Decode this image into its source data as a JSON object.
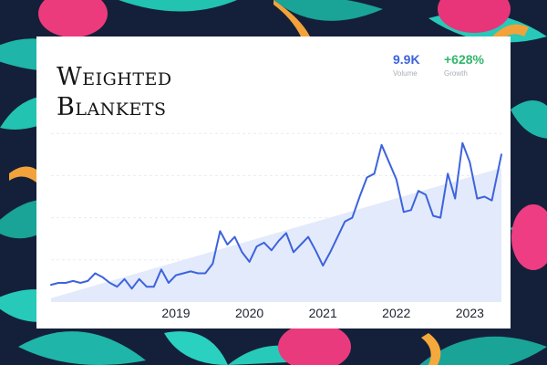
{
  "title": "Weighted Blankets",
  "stats": {
    "volume": {
      "value": "9.9K",
      "label": "Volume"
    },
    "growth": {
      "value": "+628%",
      "label": "Growth"
    }
  },
  "colors": {
    "line": "#3d63dd",
    "area": "#e3eafb",
    "volume": "#3d63dd",
    "growth": "#33b66b",
    "grid": "#e8ebf2"
  },
  "chart_data": {
    "type": "line",
    "title": "Weighted Blankets",
    "xlabel": "",
    "ylabel": "",
    "x_tick_labels": [
      "2019",
      "2020",
      "2021",
      "2022",
      "2023"
    ],
    "x_tick_values": [
      2019,
      2020,
      2021,
      2022,
      2023
    ],
    "xlim": [
      2017.3,
      2023.43
    ],
    "ylim": [
      0,
      110
    ],
    "grid": true,
    "legend": "none",
    "series": [
      {
        "name": "",
        "x": [
          2017.3,
          2017.4,
          2017.5,
          2017.6,
          2017.7,
          2017.8,
          2017.9,
          2018.0,
          2018.1,
          2018.2,
          2018.3,
          2018.4,
          2018.5,
          2018.6,
          2018.7,
          2018.8,
          2018.9,
          2019.0,
          2019.1,
          2019.2,
          2019.3,
          2019.4,
          2019.5,
          2019.6,
          2019.7,
          2019.8,
          2019.9,
          2020.0,
          2020.1,
          2020.2,
          2020.3,
          2020.4,
          2020.5,
          2020.6,
          2020.7,
          2020.8,
          2020.9,
          2021.0,
          2021.1,
          2021.2,
          2021.3,
          2021.4,
          2021.5,
          2021.6,
          2021.7,
          2021.8,
          2021.9,
          2022.0,
          2022.1,
          2022.2,
          2022.3,
          2022.4,
          2022.5,
          2022.6,
          2022.7,
          2022.8,
          2022.9,
          2023.0,
          2023.1,
          2023.2,
          2023.3,
          2023.43
        ],
        "values": [
          9,
          10,
          10,
          11,
          10,
          11,
          15,
          13,
          10,
          8,
          12,
          7,
          12,
          8,
          8,
          17,
          10,
          14,
          15,
          16,
          15,
          15,
          20,
          37,
          30,
          34,
          26,
          21,
          29,
          31,
          27,
          32,
          36,
          26,
          30,
          34,
          27,
          19,
          26,
          34,
          42,
          44,
          55,
          65,
          67,
          82,
          73,
          64,
          47,
          48,
          58,
          56,
          45,
          44,
          67,
          54,
          83,
          73,
          54,
          55,
          53,
          77
        ]
      }
    ],
    "trend": {
      "start": 2,
      "end": 70
    }
  }
}
